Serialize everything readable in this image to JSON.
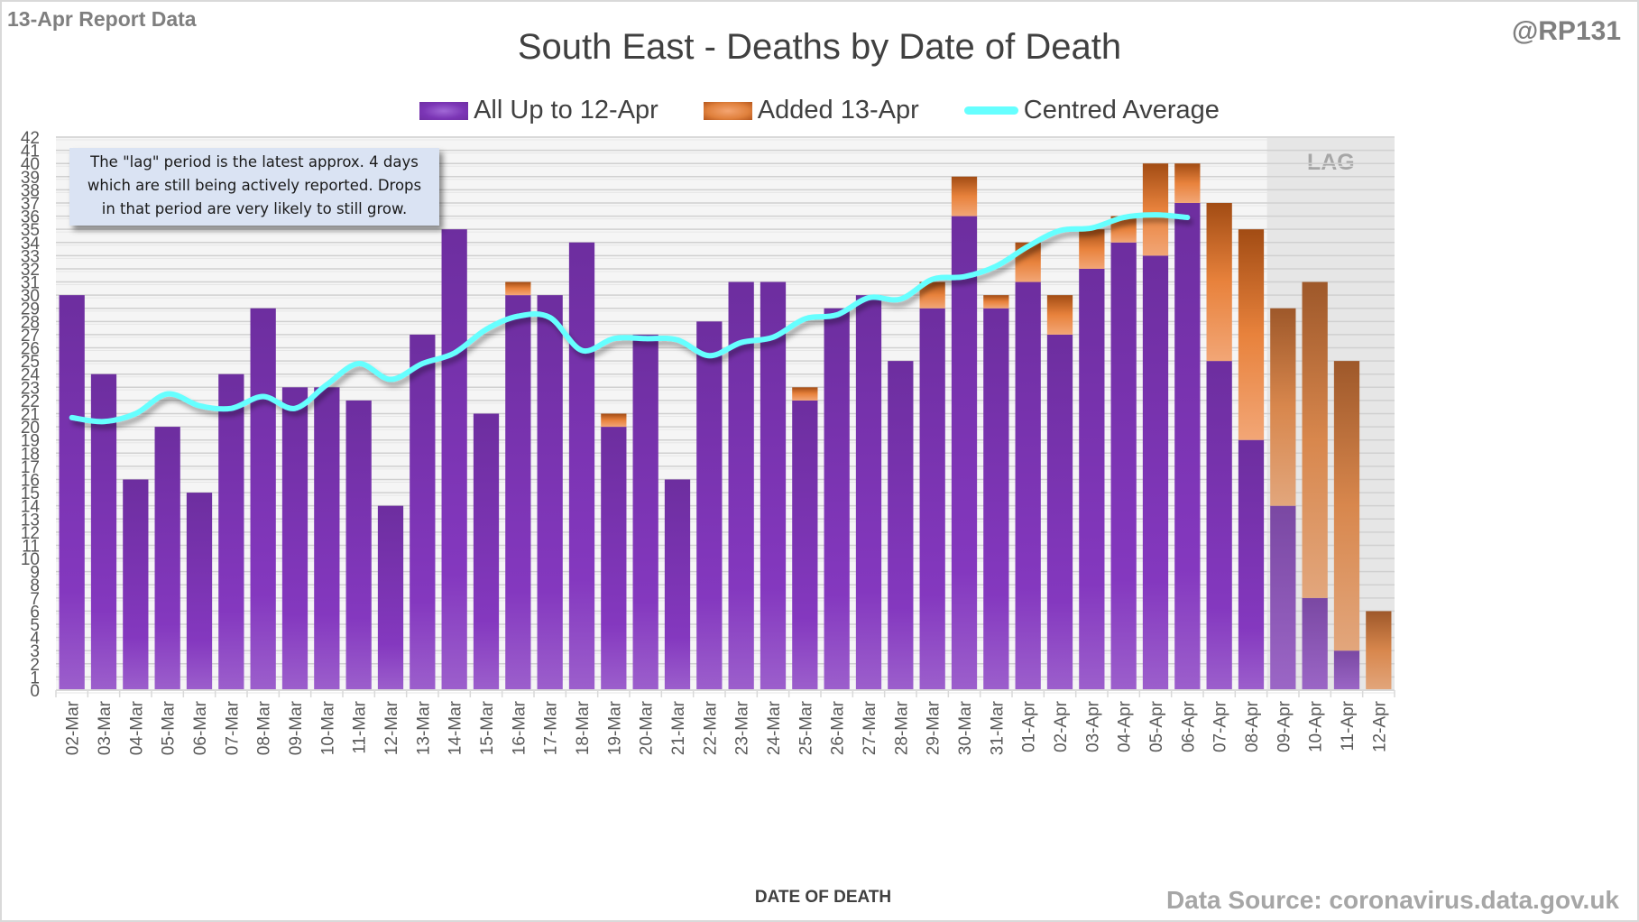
{
  "header": {
    "report_label": "13-Apr Report Data",
    "handle": "@RP131"
  },
  "annotation": {
    "lines": [
      "The \"lag\" period is the latest approx. 4 days",
      "which are still being actively reported.  Drops",
      "in that period are very likely to still grow."
    ]
  },
  "footer": {
    "source": "Data Source: coronavirus.data.gov.uk"
  },
  "colors": {
    "purple": "#7b35b5",
    "orange": "#e0813d",
    "average_line": "#66ffff",
    "lag_shade": "#e6e6e6"
  },
  "chart_data": {
    "type": "bar",
    "stacked": true,
    "title": "South East - Deaths by Date of Death",
    "xlabel": "DATE OF DEATH",
    "ylabel": "",
    "ylim": [
      0,
      42
    ],
    "y_ticks": [
      0,
      1,
      2,
      3,
      4,
      5,
      6,
      7,
      8,
      9,
      10,
      11,
      12,
      13,
      14,
      15,
      16,
      17,
      18,
      19,
      20,
      21,
      22,
      23,
      24,
      25,
      26,
      27,
      28,
      29,
      30,
      31,
      32,
      33,
      34,
      35,
      36,
      37,
      38,
      39,
      40,
      41,
      42
    ],
    "grid": true,
    "legend_position": "top-center",
    "lag_region": {
      "label": "LAG",
      "categories": [
        "09-Apr",
        "10-Apr",
        "11-Apr",
        "12-Apr"
      ]
    },
    "categories": [
      "02-Mar",
      "03-Mar",
      "04-Mar",
      "05-Mar",
      "06-Mar",
      "07-Mar",
      "08-Mar",
      "09-Mar",
      "10-Mar",
      "11-Mar",
      "12-Mar",
      "13-Mar",
      "14-Mar",
      "15-Mar",
      "16-Mar",
      "17-Mar",
      "18-Mar",
      "19-Mar",
      "20-Mar",
      "21-Mar",
      "22-Mar",
      "23-Mar",
      "24-Mar",
      "25-Mar",
      "26-Mar",
      "27-Mar",
      "28-Mar",
      "29-Mar",
      "30-Mar",
      "31-Mar",
      "01-Apr",
      "02-Apr",
      "03-Apr",
      "04-Apr",
      "05-Apr",
      "06-Apr",
      "07-Apr",
      "08-Apr",
      "09-Apr",
      "10-Apr",
      "11-Apr",
      "12-Apr"
    ],
    "series": [
      {
        "name": "All Up to 12-Apr",
        "type": "bar",
        "values": [
          30,
          24,
          16,
          20,
          15,
          24,
          29,
          23,
          23,
          22,
          14,
          27,
          35,
          21,
          30,
          30,
          34,
          20,
          27,
          16,
          28,
          31,
          31,
          22,
          29,
          30,
          25,
          29,
          36,
          29,
          31,
          27,
          32,
          34,
          33,
          37,
          25,
          19,
          14,
          7,
          3,
          0
        ]
      },
      {
        "name": "Added 13-Apr",
        "type": "bar",
        "values": [
          0,
          0,
          0,
          0,
          0,
          0,
          0,
          0,
          0,
          0,
          0,
          0,
          0,
          0,
          1,
          0,
          0,
          1,
          0,
          0,
          0,
          0,
          0,
          1,
          0,
          0,
          0,
          2,
          3,
          1,
          3,
          3,
          3,
          2,
          7,
          3,
          12,
          16,
          15,
          24,
          22,
          6
        ]
      },
      {
        "name": "Centred Average",
        "type": "line",
        "values": [
          20.7,
          20.4,
          21.0,
          22.5,
          21.6,
          21.4,
          22.3,
          21.4,
          23.2,
          24.8,
          23.6,
          24.8,
          25.6,
          27.4,
          28.4,
          28.3,
          25.8,
          26.7,
          26.7,
          26.6,
          25.4,
          26.4,
          26.8,
          28.2,
          28.5,
          29.8,
          29.7,
          31.2,
          31.4,
          32.2,
          33.7,
          34.9,
          35.1,
          35.9,
          36.1,
          35.9,
          null,
          null,
          null,
          null,
          null,
          null
        ]
      }
    ]
  }
}
